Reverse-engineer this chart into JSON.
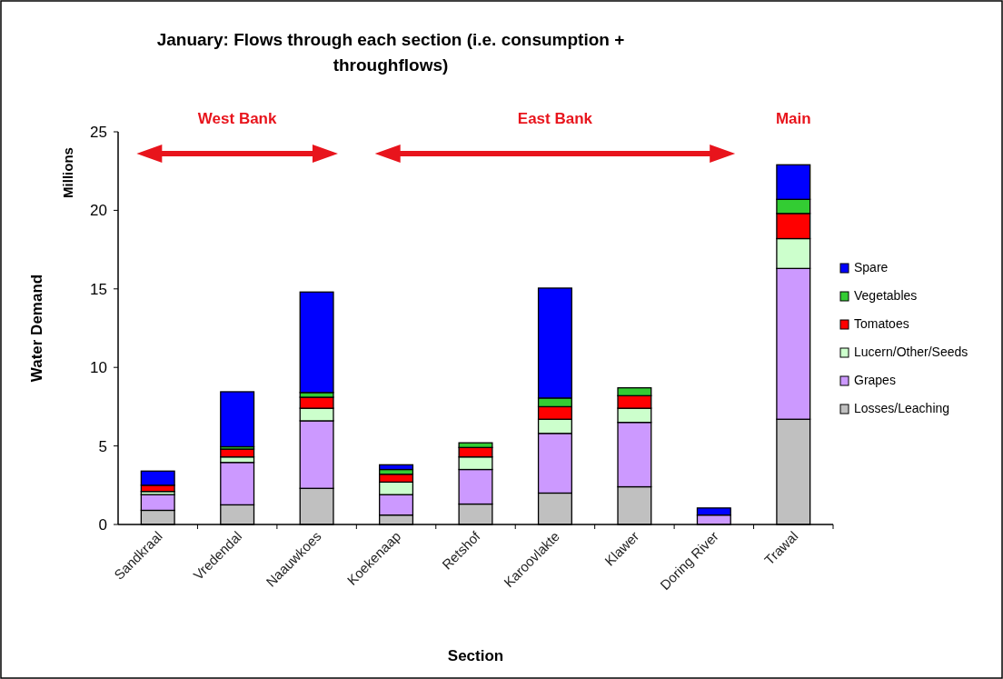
{
  "chart_data": {
    "type": "bar",
    "stacked": true,
    "title": "January: Flows through each section (i.e. consumption + throughflows)",
    "xlabel": "Section",
    "ylabel": "Water Demand",
    "annotations": [
      "West Bank",
      "East Bank",
      "Main",
      "Millions"
    ],
    "categories": [
      "Sandkraal",
      "Vredendal",
      "Naauwkoes",
      "Koekenaap",
      "Retshof",
      "Karoovlakte",
      "Klawer",
      "Doring River",
      "Trawal"
    ],
    "series": [
      {
        "name": "Losses/Leaching",
        "color": "#c0c0c0",
        "values": [
          0.9,
          1.25,
          2.3,
          0.6,
          1.3,
          2.0,
          2.4,
          null,
          6.7
        ]
      },
      {
        "name": "Grapes",
        "color": "#cc99ff",
        "values": [
          1.0,
          2.7,
          4.3,
          1.3,
          2.2,
          3.8,
          4.1,
          0.6,
          9.6
        ]
      },
      {
        "name": "Lucern/Other/Seeds",
        "color": "#ccffcc",
        "values": [
          0.2,
          0.35,
          0.8,
          0.8,
          0.8,
          0.9,
          0.9,
          0,
          1.9
        ]
      },
      {
        "name": "Tomatoes",
        "color": "#ff0000",
        "values": [
          0.4,
          0.5,
          0.7,
          0.5,
          0.6,
          0.8,
          0.8,
          0,
          1.6
        ]
      },
      {
        "name": "Vegetables",
        "color": "#33cc33",
        "values": [
          null,
          0.15,
          0.3,
          0.3,
          0.3,
          0.55,
          0.5,
          0,
          0.9
        ]
      },
      {
        "name": "Spare",
        "color": "#0000ff",
        "values": [
          0.9,
          3.5,
          6.4,
          0.3,
          0,
          7.0,
          0,
          0.45,
          2.2
        ]
      }
    ],
    "ylim": [
      0,
      25
    ],
    "yticks": [
      0,
      5,
      10,
      15,
      20,
      25
    ],
    "legend": "right",
    "grid": false
  }
}
